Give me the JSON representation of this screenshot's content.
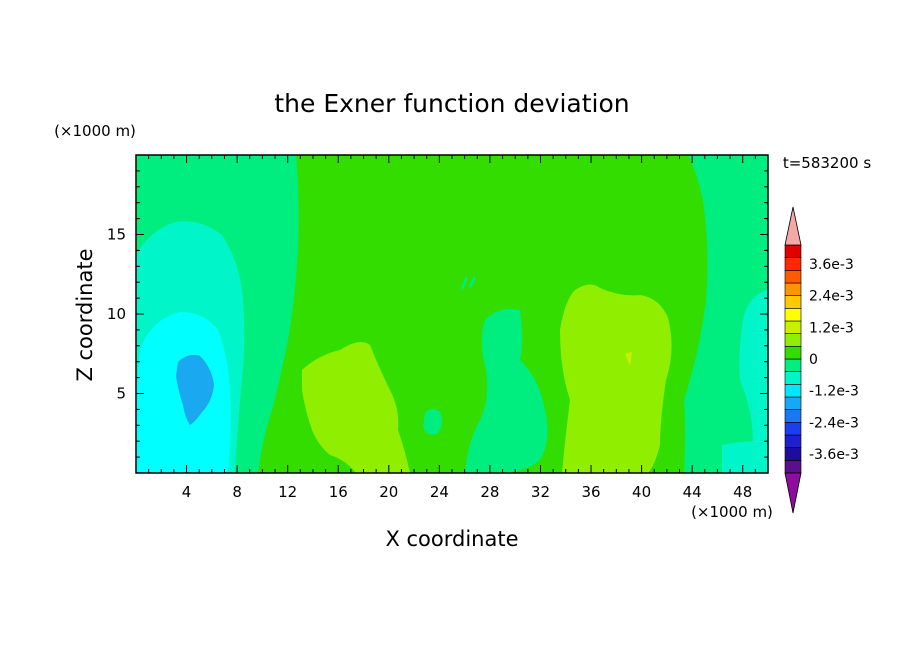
{
  "chart_data": {
    "type": "heatmap",
    "title": "the Exner function deviation",
    "xlabel": "X coordinate",
    "ylabel": "Z coordinate",
    "x_unit": "(×1000 m)",
    "z_unit": "(×1000 m)",
    "time_label": "t=583200 s",
    "xlim": [
      0,
      50
    ],
    "zlim": [
      0,
      20
    ],
    "x_ticks": [
      4,
      8,
      12,
      16,
      20,
      24,
      28,
      32,
      36,
      40,
      44,
      48
    ],
    "z_ticks": [
      5,
      10,
      15
    ],
    "colorbar": {
      "levels": [
        "-3.6e-3",
        "-2.4e-3",
        "-1.2e-3",
        "0",
        "1.2e-3",
        "2.4e-3",
        "3.6e-3"
      ],
      "level_values": [
        -0.0036,
        -0.0024,
        -0.0012,
        0,
        0.0012,
        0.0024,
        0.0036
      ],
      "colors": [
        "#5a0f8c",
        "#1e0ca0",
        "#1f1fd0",
        "#1a3ef0",
        "#1a78f0",
        "#14a8f5",
        "#00e8ff",
        "#00f5c8",
        "#00ee80",
        "#33dd00",
        "#90ef00",
        "#c8f000",
        "#ffff00",
        "#ffc800",
        "#ff9400",
        "#ff5a00",
        "#ff2800",
        "#e00000"
      ],
      "under_color": "#8e0ca0",
      "over_color": "#f4a8a8"
    },
    "regions": [
      {
        "level": "0 to 0.4e-3",
        "color": "#33dd00",
        "description": "background field"
      },
      {
        "level": "-0.4e-3 to 0",
        "color": "#00ee80",
        "description": "left and right bands"
      },
      {
        "level": "-0.8e-3 to -0.4e-3",
        "color": "#00f5c8",
        "description": "left plume x 0-8, z 0-16"
      },
      {
        "level": "-1.2e-3 to -0.8e-3",
        "color": "#00ffff",
        "description": "left core x 1-7, z 0-10"
      },
      {
        "level": "-1.6e-3 to -1.2e-3",
        "color": "#1aa8f0",
        "description": "minimum near x 4.5, z 6"
      },
      {
        "level": "0.4e-3 to 0.8e-3",
        "color": "#90ef00",
        "description": "positive blobs near x 18 and x 38"
      }
    ]
  }
}
